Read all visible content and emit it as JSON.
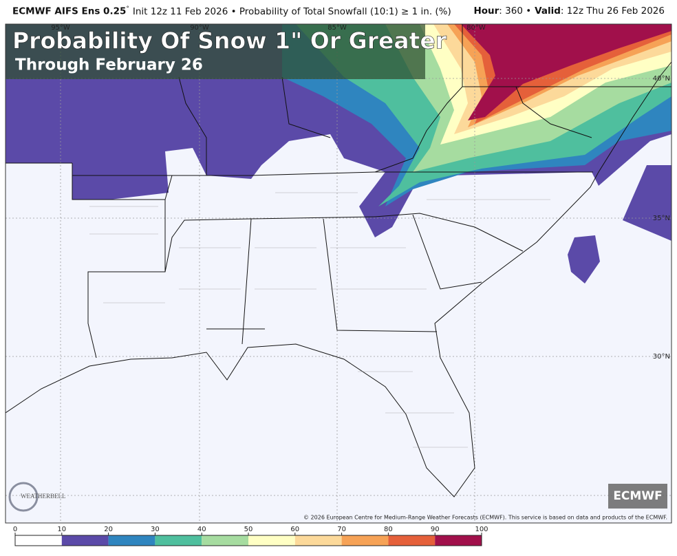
{
  "header": {
    "model": "ECMWF AIFS Ens 0.25",
    "degree": "°",
    "description": "Init 12z 11 Feb 2026 • Probability of Total Snowfall (10:1) ≥ 1 in. (%)",
    "hour_label": "Hour",
    "hour_value": ": 360 •",
    "valid_label": "Valid",
    "valid_value": ": 12z Thu 26 Feb 2026"
  },
  "overlay": {
    "title": "Probability Of Snow 1\" Or Greater",
    "subtitle": "Through February 26"
  },
  "map": {
    "lat_labels": [
      "40°N",
      "35°N",
      "30°N"
    ],
    "lon_labels": [
      "95°W",
      "90°W",
      "85°W",
      "80°W"
    ]
  },
  "copyright": "© 2026 European Centre for Medium-Range Weather Forecasts (ECMWF). This service is based on data and products of the ECMWF.",
  "logos": {
    "ecmwf": "ECMWF",
    "weatherbell": "WEATHERBELL"
  },
  "colorbar": {
    "ticks": [
      0,
      10,
      20,
      30,
      40,
      50,
      60,
      70,
      80,
      90,
      100
    ],
    "colors": [
      "#ffffff",
      "#5b4aa8",
      "#2f85bf",
      "#4fbf9e",
      "#a6dca0",
      "#ffffc4",
      "#fcd99a",
      "#f6a256",
      "#e5603a",
      "#a1104b"
    ]
  }
}
